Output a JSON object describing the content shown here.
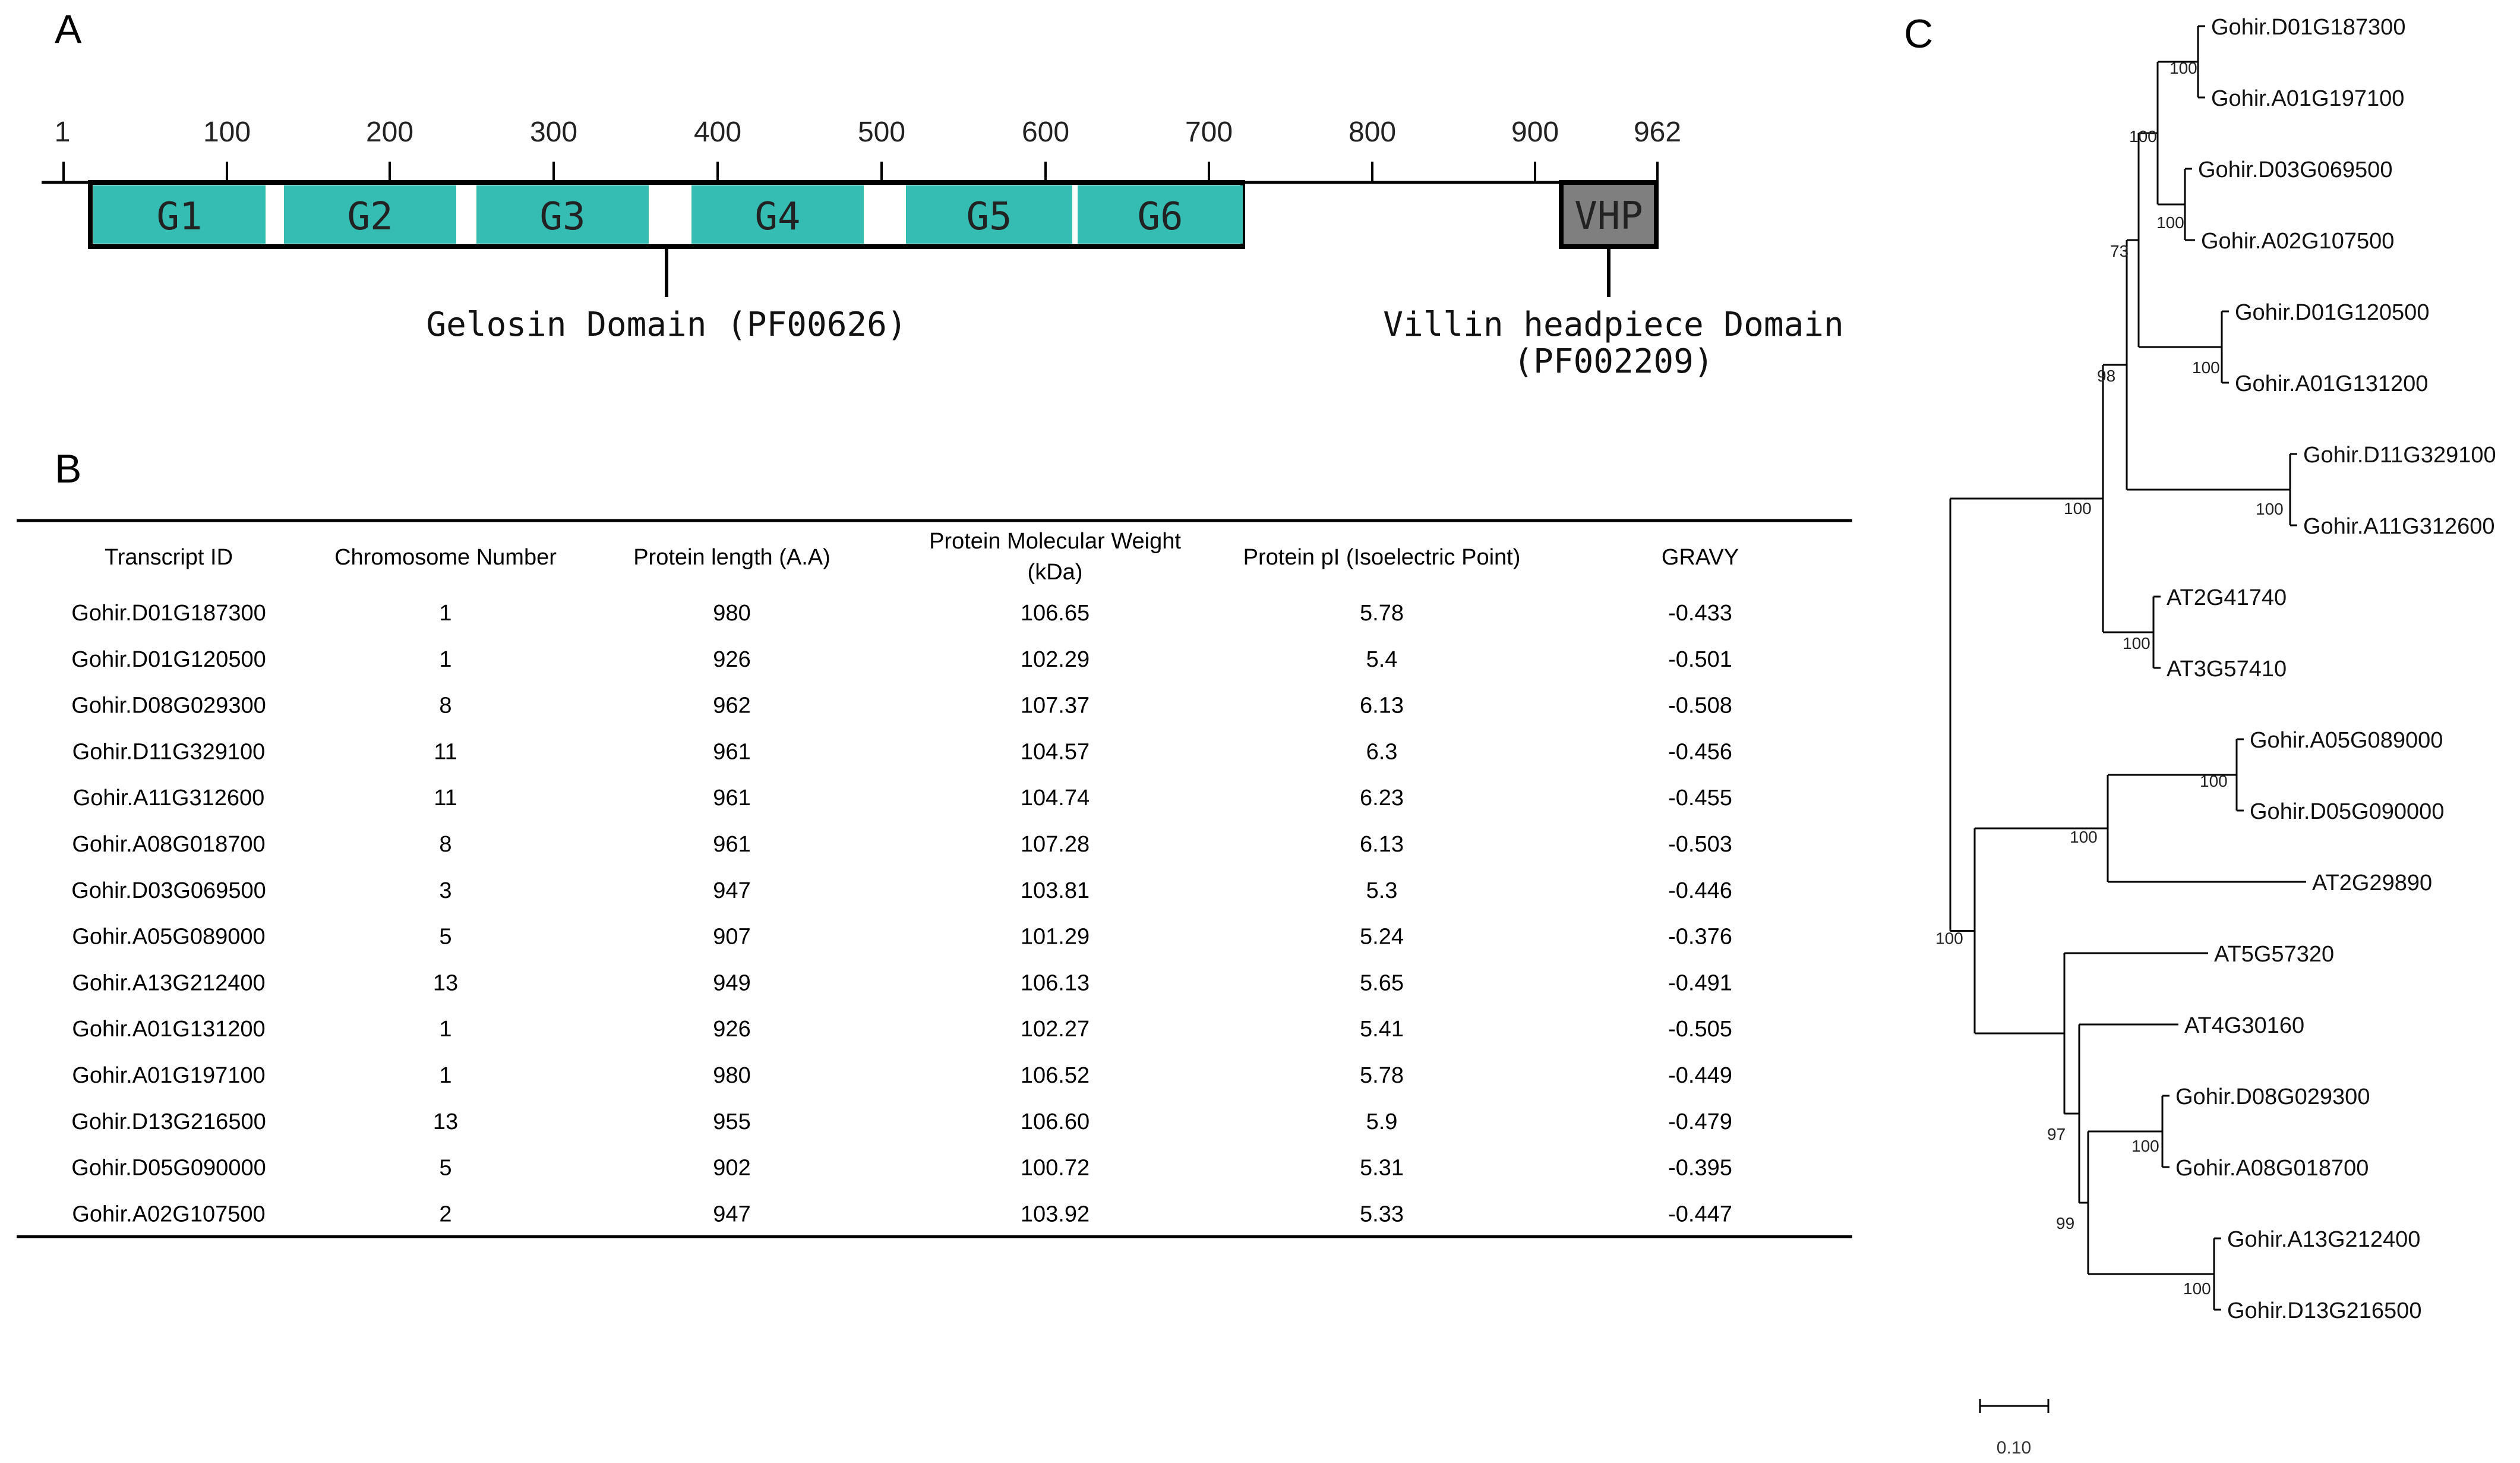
{
  "panel_a": {
    "label": "A",
    "ruler_ticks": [
      "1",
      "100",
      "200",
      "300",
      "400",
      "500",
      "600",
      "700",
      "800",
      "900",
      "962"
    ],
    "domains": [
      "G1",
      "G2",
      "G3",
      "G4",
      "G5",
      "G6"
    ],
    "vhp_label": "VHP",
    "gelosin_label": "Gelosin Domain (PF00626)",
    "villin_label_line1": "Villin headpiece Domain",
    "villin_label_line2": "(PF002209)",
    "colors": {
      "domain": "#35bdb3",
      "vhp": "#7f7f7f"
    }
  },
  "panel_b": {
    "label": "B",
    "headers": {
      "transcript": "Transcript ID",
      "chromosome": "Chromosome Number",
      "length": "Protein length (A.A)",
      "mw_line1": "Protein Molecular Weight",
      "mw_line2": "(kDa)",
      "pi": "Protein pI (Isoelectric Point)",
      "gravy": "GRAVY"
    },
    "rows": [
      [
        "Gohir.D01G187300",
        "1",
        "980",
        "106.65",
        "5.78",
        "-0.433"
      ],
      [
        "Gohir.D01G120500",
        "1",
        "926",
        "102.29",
        "5.4",
        "-0.501"
      ],
      [
        "Gohir.D08G029300",
        "8",
        "962",
        "107.37",
        "6.13",
        "-0.508"
      ],
      [
        "Gohir.D11G329100",
        "11",
        "961",
        "104.57",
        "6.3",
        "-0.456"
      ],
      [
        "Gohir.A11G312600",
        "11",
        "961",
        "104.74",
        "6.23",
        "-0.455"
      ],
      [
        "Gohir.A08G018700",
        "8",
        "961",
        "107.28",
        "6.13",
        "-0.503"
      ],
      [
        "Gohir.D03G069500",
        "3",
        "947",
        "103.81",
        "5.3",
        "-0.446"
      ],
      [
        "Gohir.A05G089000",
        "5",
        "907",
        "101.29",
        "5.24",
        "-0.376"
      ],
      [
        "Gohir.A13G212400",
        "13",
        "949",
        "106.13",
        "5.65",
        "-0.491"
      ],
      [
        "Gohir.A01G131200",
        "1",
        "926",
        "102.27",
        "5.41",
        "-0.505"
      ],
      [
        "Gohir.A01G197100",
        "1",
        "980",
        "106.52",
        "5.78",
        "-0.449"
      ],
      [
        "Gohir.D13G216500",
        "13",
        "955",
        "106.60",
        "5.9",
        "-0.479"
      ],
      [
        "Gohir.D05G090000",
        "5",
        "902",
        "100.72",
        "5.31",
        "-0.395"
      ],
      [
        "Gohir.A02G107500",
        "2",
        "947",
        "103.92",
        "5.33",
        "-0.447"
      ]
    ]
  },
  "panel_c": {
    "label": "C",
    "leaves": [
      "Gohir.D01G187300",
      "Gohir.A01G197100",
      "Gohir.D03G069500",
      "Gohir.A02G107500",
      "Gohir.D01G120500",
      "Gohir.A01G131200",
      "Gohir.D11G329100",
      "Gohir.A11G312600",
      "AT2G41740",
      "AT3G57410",
      "Gohir.A05G089000",
      "Gohir.D05G090000",
      "AT2G29890",
      "AT5G57320",
      "AT4G30160",
      "Gohir.D08G029300",
      "Gohir.A08G018700",
      "Gohir.A13G212400",
      "Gohir.D13G216500"
    ],
    "bootstraps": [
      "100",
      "100",
      "100",
      "73",
      "100",
      "100",
      "98",
      "100",
      "100",
      "100",
      "100",
      "100",
      "100",
      "97",
      "99",
      "100"
    ],
    "scale_label": "0.10"
  }
}
